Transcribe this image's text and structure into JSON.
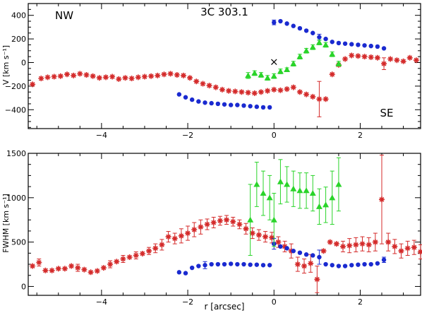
{
  "colors": {
    "red": "#d42a2a",
    "blue": "#1a2ad0",
    "green": "#2ad42a",
    "axis": "#000000"
  },
  "chart_data": [
    {
      "type": "scatter",
      "title": "3C 303.1",
      "annotations": [
        "NW",
        "SE",
        "×"
      ],
      "xlabel": "",
      "ylabel": "V [km s⁻¹]",
      "xlim": [
        -5.7,
        3.4
      ],
      "ylim": [
        -560,
        500
      ],
      "xticks": [
        -4,
        -2,
        0,
        2
      ],
      "yticks": [
        -400,
        -200,
        0,
        200,
        400
      ],
      "marker_x": {
        "x": 0.0,
        "y": 5
      },
      "series": [
        {
          "color": "red",
          "marker": "star",
          "x": [
            -5.6,
            -5.4,
            -5.25,
            -5.1,
            -4.95,
            -4.8,
            -4.65,
            -4.5,
            -4.35,
            -4.2,
            -4.05,
            -3.9,
            -3.75,
            -3.6,
            -3.45,
            -3.3,
            -3.15,
            -3.0,
            -2.85,
            -2.7,
            -2.55,
            -2.4,
            -2.25,
            -2.1,
            -1.95,
            -1.8,
            -1.65,
            -1.5,
            -1.35,
            -1.2,
            -1.05,
            -0.9,
            -0.75,
            -0.6,
            -0.45,
            -0.3,
            -0.15,
            0.0,
            0.15,
            0.3,
            0.45,
            0.6,
            0.75,
            0.9,
            1.05,
            1.2,
            1.35,
            1.5,
            1.65,
            1.8,
            1.95,
            2.1,
            2.25,
            2.4,
            2.55,
            2.7,
            2.85,
            3.0,
            3.15,
            3.3
          ],
          "y": [
            -185,
            -135,
            -125,
            -120,
            -115,
            -100,
            -110,
            -95,
            -105,
            -115,
            -130,
            -125,
            -120,
            -140,
            -130,
            -135,
            -125,
            -120,
            -115,
            -110,
            -100,
            -95,
            -105,
            -110,
            -130,
            -160,
            -180,
            -195,
            -210,
            -230,
            -240,
            -245,
            -250,
            -255,
            -260,
            -250,
            -240,
            -230,
            -235,
            -225,
            -210,
            -250,
            -270,
            -290,
            -310,
            -310,
            -100,
            -20,
            30,
            60,
            55,
            50,
            45,
            40,
            -10,
            30,
            20,
            10,
            40,
            20
          ],
          "err": [
            0,
            0,
            0,
            0,
            0,
            0,
            0,
            0,
            0,
            0,
            0,
            0,
            0,
            0,
            0,
            0,
            0,
            0,
            0,
            0,
            0,
            0,
            0,
            0,
            0,
            0,
            0,
            0,
            0,
            0,
            0,
            0,
            0,
            0,
            0,
            0,
            0,
            0,
            0,
            0,
            0,
            0,
            0,
            0,
            150,
            0,
            0,
            0,
            0,
            0,
            0,
            0,
            0,
            0,
            50,
            0,
            0,
            0,
            0,
            0
          ]
        },
        {
          "color": "blue",
          "marker": "circle",
          "x": [
            -2.2,
            -2.05,
            -1.9,
            -1.75,
            -1.6,
            -1.45,
            -1.3,
            -1.15,
            -1.0,
            -0.85,
            -0.7,
            -0.55,
            -0.4,
            -0.25,
            -0.1,
            0.0,
            0.15,
            0.3,
            0.45,
            0.6,
            0.75,
            0.9,
            1.05,
            1.2,
            1.35,
            1.5,
            1.65,
            1.8,
            1.95,
            2.1,
            2.25,
            2.4,
            2.55
          ],
          "y": [
            -270,
            -295,
            -315,
            -330,
            -340,
            -345,
            -350,
            -355,
            -360,
            -360,
            -365,
            -370,
            -375,
            -380,
            -380,
            340,
            350,
            330,
            310,
            290,
            270,
            250,
            215,
            200,
            175,
            165,
            160,
            155,
            150,
            145,
            140,
            135,
            120
          ],
          "err": [
            0,
            0,
            0,
            0,
            0,
            0,
            0,
            0,
            0,
            0,
            0,
            0,
            0,
            0,
            0,
            20,
            0,
            0,
            0,
            0,
            0,
            0,
            25,
            0,
            0,
            0,
            0,
            0,
            0,
            0,
            0,
            0,
            0
          ]
        },
        {
          "color": "green",
          "marker": "triangle",
          "x": [
            -0.6,
            -0.45,
            -0.3,
            -0.15,
            0.0,
            0.15,
            0.3,
            0.45,
            0.6,
            0.75,
            0.9,
            1.05,
            1.2,
            1.35,
            1.5
          ],
          "y": [
            -110,
            -90,
            -105,
            -130,
            -115,
            -75,
            -60,
            -10,
            50,
            100,
            130,
            170,
            150,
            70,
            -10
          ],
          "err": [
            25,
            20,
            20,
            20,
            20,
            20,
            15,
            20,
            20,
            20,
            20,
            20,
            20,
            20,
            20
          ]
        }
      ]
    },
    {
      "type": "scatter",
      "title": "",
      "xlabel": "r [arcsec]",
      "ylabel": "FWHM [km s⁻¹]",
      "xlim": [
        -5.7,
        3.4
      ],
      "ylim": [
        -100,
        1500
      ],
      "xticks": [
        -4,
        -2,
        0,
        2
      ],
      "yticks": [
        0,
        500,
        1000,
        1500
      ],
      "series": [
        {
          "color": "red",
          "marker": "star",
          "x": [
            -5.6,
            -5.45,
            -5.3,
            -5.15,
            -5.0,
            -4.85,
            -4.7,
            -4.55,
            -4.4,
            -4.25,
            -4.1,
            -3.95,
            -3.8,
            -3.65,
            -3.5,
            -3.35,
            -3.2,
            -3.05,
            -2.9,
            -2.75,
            -2.6,
            -2.45,
            -2.3,
            -2.15,
            -2.0,
            -1.85,
            -1.7,
            -1.55,
            -1.4,
            -1.25,
            -1.1,
            -0.95,
            -0.8,
            -0.65,
            -0.5,
            -0.35,
            -0.2,
            -0.05,
            0.1,
            0.25,
            0.4,
            0.55,
            0.7,
            0.85,
            1.0,
            1.15,
            1.3,
            1.45,
            1.6,
            1.75,
            1.9,
            2.05,
            2.2,
            2.35,
            2.5,
            2.65,
            2.8,
            2.95,
            3.1,
            3.25,
            3.4
          ],
          "y": [
            230,
            270,
            180,
            180,
            200,
            200,
            230,
            210,
            190,
            160,
            175,
            210,
            250,
            280,
            310,
            330,
            350,
            370,
            400,
            430,
            470,
            560,
            540,
            570,
            600,
            640,
            670,
            700,
            720,
            740,
            750,
            730,
            700,
            650,
            600,
            580,
            560,
            550,
            500,
            450,
            400,
            250,
            230,
            260,
            80,
            400,
            500,
            480,
            450,
            460,
            470,
            480,
            470,
            500,
            980,
            500,
            450,
            400,
            430,
            440,
            390
          ],
          "err": [
            0,
            40,
            0,
            0,
            0,
            0,
            0,
            40,
            0,
            0,
            0,
            0,
            40,
            0,
            40,
            0,
            40,
            0,
            40,
            50,
            60,
            60,
            60,
            80,
            80,
            80,
            80,
            60,
            60,
            50,
            50,
            50,
            50,
            60,
            60,
            60,
            60,
            60,
            60,
            60,
            80,
            80,
            80,
            100,
            150,
            0,
            0,
            0,
            60,
            80,
            80,
            80,
            80,
            100,
            500,
            100,
            80,
            80,
            80,
            80,
            80
          ]
        },
        {
          "color": "blue",
          "marker": "circle",
          "x": [
            -2.2,
            -2.05,
            -1.9,
            -1.75,
            -1.6,
            -1.45,
            -1.3,
            -1.15,
            -1.0,
            -0.85,
            -0.7,
            -0.55,
            -0.4,
            -0.25,
            -0.1,
            0.0,
            0.15,
            0.3,
            0.45,
            0.6,
            0.75,
            0.9,
            1.05,
            1.2,
            1.35,
            1.5,
            1.65,
            1.8,
            1.95,
            2.1,
            2.25,
            2.4,
            2.55
          ],
          "y": [
            160,
            150,
            210,
            230,
            240,
            250,
            250,
            250,
            255,
            250,
            250,
            245,
            245,
            240,
            240,
            480,
            450,
            430,
            400,
            380,
            360,
            350,
            330,
            250,
            240,
            230,
            230,
            240,
            245,
            250,
            250,
            260,
            300
          ],
          "err": [
            0,
            0,
            0,
            0,
            40,
            0,
            0,
            0,
            0,
            0,
            0,
            0,
            0,
            0,
            0,
            60,
            0,
            0,
            0,
            0,
            0,
            0,
            80,
            0,
            0,
            0,
            0,
            0,
            0,
            0,
            0,
            0,
            30
          ]
        },
        {
          "color": "green",
          "marker": "triangle",
          "x": [
            -0.55,
            -0.4,
            -0.25,
            -0.1,
            0.0,
            0.15,
            0.3,
            0.45,
            0.6,
            0.75,
            0.9,
            1.05,
            1.2,
            1.35,
            1.5
          ],
          "y": [
            750,
            1150,
            1050,
            1000,
            750,
            1180,
            1150,
            1100,
            1080,
            1080,
            1050,
            900,
            920,
            1000,
            1150
          ],
          "err": [
            400,
            250,
            250,
            250,
            300,
            250,
            200,
            200,
            200,
            200,
            200,
            200,
            200,
            300,
            300
          ]
        }
      ]
    }
  ]
}
